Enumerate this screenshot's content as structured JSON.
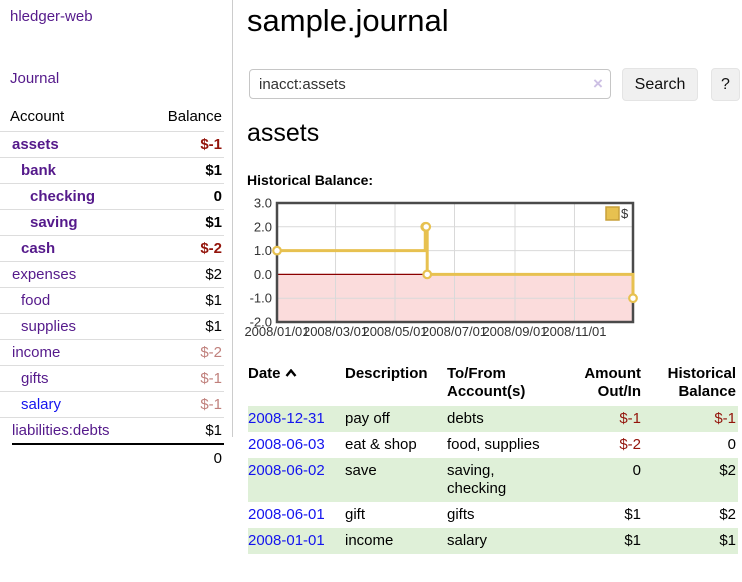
{
  "app": {
    "title": "hledger-web"
  },
  "colors": {
    "purple_link": "#551a8b",
    "blue_link": "#1414ee",
    "negative": "#93140b",
    "negative_muted": "#c0807c",
    "row_shade_green": "#dff0d8",
    "divider": "#cccccc"
  },
  "sidebar": {
    "journal_link": "Journal",
    "account_header": "Account",
    "balance_header": "Balance",
    "accounts": [
      {
        "name": "assets",
        "depth": 1,
        "balance": "$-1",
        "bold": true,
        "neg": "strong"
      },
      {
        "name": "bank",
        "depth": 2,
        "balance": "$1",
        "bold": true
      },
      {
        "name": "checking",
        "depth": 3,
        "balance": "0",
        "bold": true
      },
      {
        "name": "saving",
        "depth": 3,
        "balance": "$1",
        "bold": true
      },
      {
        "name": "cash",
        "depth": 2,
        "balance": "$-2",
        "bold": true,
        "neg": "strong"
      },
      {
        "name": "expenses",
        "depth": 1,
        "balance": "$2"
      },
      {
        "name": "food",
        "depth": 2,
        "balance": "$1"
      },
      {
        "name": "supplies",
        "depth": 2,
        "balance": "$1"
      },
      {
        "name": "income",
        "depth": 1,
        "balance": "$-2",
        "neg": "muted"
      },
      {
        "name": "gifts",
        "depth": 2,
        "balance": "$-1",
        "neg": "muted"
      },
      {
        "name": "salary",
        "depth": 2,
        "balance": "$-1",
        "neg": "muted",
        "link": "blue"
      },
      {
        "name": "liabilities:debts",
        "depth": 1,
        "balance": "$1"
      }
    ],
    "total": "0"
  },
  "main": {
    "title": "sample.journal",
    "search": {
      "value": "inacct:assets",
      "clear_icon": "×",
      "button": "Search",
      "help_button": "?"
    },
    "account_heading": "assets",
    "chart_label": "Historical Balance:"
  },
  "chart_data": {
    "type": "line",
    "step": true,
    "title": "Historical Balance",
    "legend": "$",
    "series": [
      {
        "name": "$",
        "points": [
          [
            "2008-01-01",
            1
          ],
          [
            "2008-06-01",
            2
          ],
          [
            "2008-06-02",
            2
          ],
          [
            "2008-06-03",
            0
          ],
          [
            "2008-12-31",
            -1
          ]
        ]
      }
    ],
    "x_range": [
      "2008-01-01",
      "2008-12-31"
    ],
    "x_ticks": [
      "2008/01/01",
      "2008/03/01",
      "2008/05/01",
      "2008/07/01",
      "2008/09/01",
      "2008/11/01"
    ],
    "y_ticks": [
      3.0,
      2.0,
      1.0,
      0.0,
      -1.0,
      -2.0
    ],
    "ylim": [
      -2,
      3
    ],
    "grid": true,
    "legend_position": "top-right",
    "colors": {
      "line": "#e7c150",
      "marker_fill": "#ffffff",
      "legend_border": "#c8a13a",
      "negative_region": "#fbdcdc",
      "zero_line": "#8b0000",
      "grid": "#d9d9d9",
      "border": "#4a4a4a",
      "axis_text": "#333333"
    }
  },
  "register": {
    "headers": {
      "date": "Date",
      "description": "Description",
      "accounts": "To/From Account(s)",
      "amount": "Amount Out/In",
      "balance": "Historical Balance"
    },
    "rows": [
      {
        "date": "2008-12-31",
        "description": "pay off",
        "accounts": "debts",
        "amount": "$-1",
        "amount_neg": true,
        "balance": "$-1",
        "balance_neg": true,
        "shaded": true
      },
      {
        "date": "2008-06-03",
        "description": "eat & shop",
        "accounts": "food, supplies",
        "amount": "$-2",
        "amount_neg": true,
        "balance": "0",
        "balance_neg": false,
        "shaded": false
      },
      {
        "date": "2008-06-02",
        "description": "save",
        "accounts": "saving, checking",
        "amount": "0",
        "amount_neg": false,
        "balance": "$2",
        "balance_neg": false,
        "shaded": true
      },
      {
        "date": "2008-06-01",
        "description": "gift",
        "accounts": "gifts",
        "amount": "$1",
        "amount_neg": false,
        "balance": "$2",
        "balance_neg": false,
        "shaded": false
      },
      {
        "date": "2008-01-01",
        "description": "income",
        "accounts": "salary",
        "amount": "$1",
        "amount_neg": false,
        "balance": "$1",
        "balance_neg": false,
        "shaded": true
      }
    ]
  }
}
